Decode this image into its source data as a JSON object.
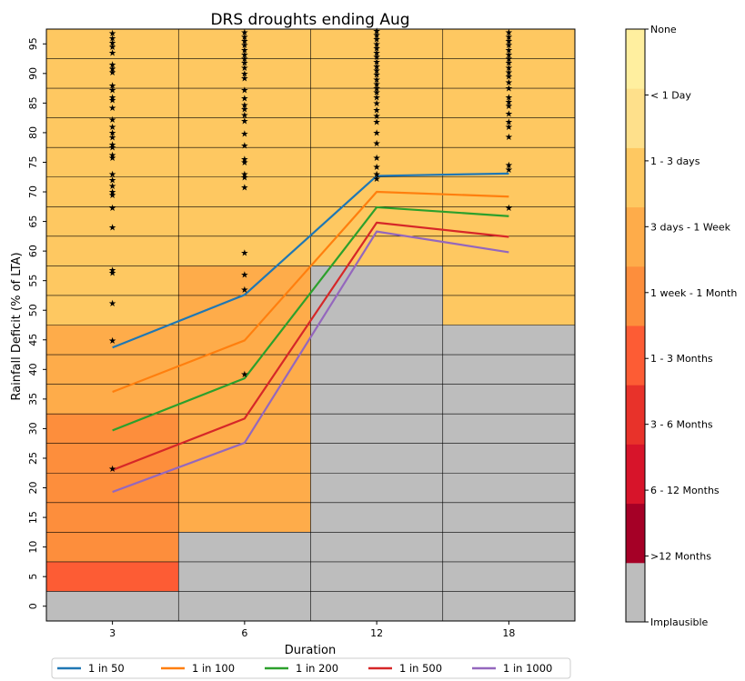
{
  "chart_data": {
    "type": "heatmap",
    "title": "DRS droughts ending Aug",
    "xlabel": "Duration",
    "ylabel": "Rainfall Deficit (% of LTA)",
    "x_categories": [
      "3",
      "6",
      "12",
      "18"
    ],
    "y_ticks": [
      0,
      5,
      10,
      15,
      20,
      25,
      30,
      35,
      40,
      45,
      50,
      55,
      60,
      65,
      70,
      75,
      80,
      85,
      90,
      95
    ],
    "ylim": [
      -2.5,
      97.5
    ],
    "y_bins": [
      0,
      5,
      10,
      15,
      20,
      25,
      30,
      35,
      40,
      45,
      50,
      55,
      60,
      65,
      70,
      75,
      80,
      85,
      90,
      95
    ],
    "colorbar": {
      "labels": [
        "Implausible",
        ">12 Months",
        "6 - 12 Months",
        "3 - 6 Months",
        "1 - 3 Months",
        "1 week - 1 Month",
        "3 days - 1 Week",
        "1 - 3 days",
        "< 1 Day",
        "None"
      ],
      "colors": [
        "#bdbdbd",
        "#a50026",
        "#d7142a",
        "#e8322a",
        "#fd5c34",
        "#fd8e3c",
        "#feac4a",
        "#fec861",
        "#fee08b",
        "#ffef9f"
      ]
    },
    "cells": [
      [
        0,
        4,
        5,
        5,
        5,
        5,
        5,
        6,
        6,
        6,
        7,
        7,
        7,
        7,
        7,
        7,
        7,
        7,
        7,
        7
      ],
      [
        0,
        0,
        0,
        6,
        6,
        6,
        6,
        6,
        6,
        6,
        6,
        6,
        7,
        7,
        7,
        7,
        7,
        7,
        7,
        7
      ],
      [
        0,
        0,
        0,
        0,
        0,
        0,
        0,
        0,
        0,
        0,
        0,
        0,
        7,
        7,
        7,
        7,
        7,
        7,
        7,
        7
      ],
      [
        0,
        0,
        0,
        0,
        0,
        0,
        0,
        0,
        0,
        0,
        7,
        7,
        7,
        7,
        7,
        7,
        7,
        7,
        7,
        7
      ]
    ],
    "series": [
      {
        "name": "1 in 50",
        "color": "#1f77b4",
        "values": [
          43.7,
          52.6,
          72.7,
          73.1
        ]
      },
      {
        "name": "1 in 100",
        "color": "#ff7f0e",
        "values": [
          36.2,
          44.9,
          70.0,
          69.2
        ]
      },
      {
        "name": "1 in 200",
        "color": "#2ca02c",
        "values": [
          29.7,
          38.5,
          67.4,
          65.9
        ]
      },
      {
        "name": "1 in 500",
        "color": "#d62728",
        "values": [
          23.0,
          31.7,
          64.8,
          62.4
        ]
      },
      {
        "name": "1 in 1000",
        "color": "#9467bd",
        "values": [
          19.3,
          27.6,
          63.3,
          59.8
        ]
      }
    ],
    "events": [
      {
        "x": "3",
        "y": [
          96.8,
          96.0,
          95.2,
          94.5,
          93.5,
          91.5,
          90.8,
          90.2,
          88.0,
          87.2,
          86.0,
          85.5,
          84.2,
          82.2,
          81.0,
          80.0,
          79.2,
          78.0,
          77.5,
          76.2,
          75.8,
          73.0,
          72.0,
          71.0,
          70.0,
          69.5,
          67.3,
          64.0,
          56.8,
          56.3,
          51.2,
          44.9,
          23.2
        ]
      },
      {
        "x": "6",
        "y": [
          97.0,
          96.2,
          95.5,
          94.8,
          94.0,
          93.2,
          92.5,
          91.8,
          91.0,
          90.0,
          89.2,
          87.2,
          85.8,
          84.7,
          84.0,
          83.0,
          82.0,
          79.8,
          77.8,
          75.5,
          75.0,
          73.0,
          72.5,
          70.8,
          59.7,
          56.0,
          53.5,
          39.2
        ]
      },
      {
        "x": "12",
        "y": [
          97.2,
          96.5,
          95.8,
          95.0,
          94.3,
          93.5,
          92.8,
          92.0,
          91.2,
          90.5,
          89.8,
          89.0,
          88.2,
          87.5,
          86.8,
          86.0,
          85.0,
          83.8,
          82.8,
          81.8,
          80.0,
          78.2,
          75.8,
          74.2,
          73.0,
          72.2
        ]
      },
      {
        "x": "18",
        "y": [
          97.0,
          96.2,
          95.5,
          94.8,
          94.0,
          93.2,
          92.5,
          91.8,
          91.0,
          90.2,
          89.5,
          88.5,
          87.5,
          86.0,
          85.2,
          84.5,
          83.2,
          81.8,
          81.0,
          79.3,
          74.5,
          73.8,
          67.3
        ]
      }
    ],
    "legend": {
      "placement": "bottom-center",
      "ncol": 5
    },
    "grid": true
  }
}
